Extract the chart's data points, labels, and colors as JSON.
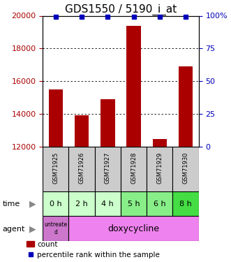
{
  "title": "GDS1550 / 5190_i_at",
  "samples": [
    "GSM71925",
    "GSM71926",
    "GSM71927",
    "GSM71928",
    "GSM71929",
    "GSM71930"
  ],
  "count_values": [
    15500,
    13900,
    14900,
    19400,
    12450,
    16900
  ],
  "percentile_values": [
    99,
    99,
    99,
    99,
    99,
    99
  ],
  "ylim_left": [
    12000,
    20000
  ],
  "ylim_right": [
    0,
    100
  ],
  "yticks_left": [
    12000,
    14000,
    16000,
    18000,
    20000
  ],
  "yticks_right": [
    0,
    25,
    50,
    75,
    100
  ],
  "ytick_right_labels": [
    "0",
    "25",
    "50",
    "75",
    "100%"
  ],
  "time_labels": [
    "0 h",
    "2 h",
    "4 h",
    "5 h",
    "6 h",
    "8 h"
  ],
  "time_colors": [
    "#ccffcc",
    "#ccffcc",
    "#ccffcc",
    "#88ee88",
    "#88ee88",
    "#44dd44"
  ],
  "agent_untreated_color": "#cc77cc",
  "agent_doxy_color": "#ee82ee",
  "bar_color": "#aa0000",
  "percentile_color": "#0000bb",
  "sample_bg": "#cccccc",
  "title_fontsize": 11,
  "tick_fontsize": 8,
  "sample_fontsize": 6,
  "time_fontsize": 8,
  "agent_fontsize": 9,
  "legend_fontsize": 7.5,
  "label_fontsize": 8,
  "arrow_color": "#888888",
  "grid_dotted_color": "#555555"
}
